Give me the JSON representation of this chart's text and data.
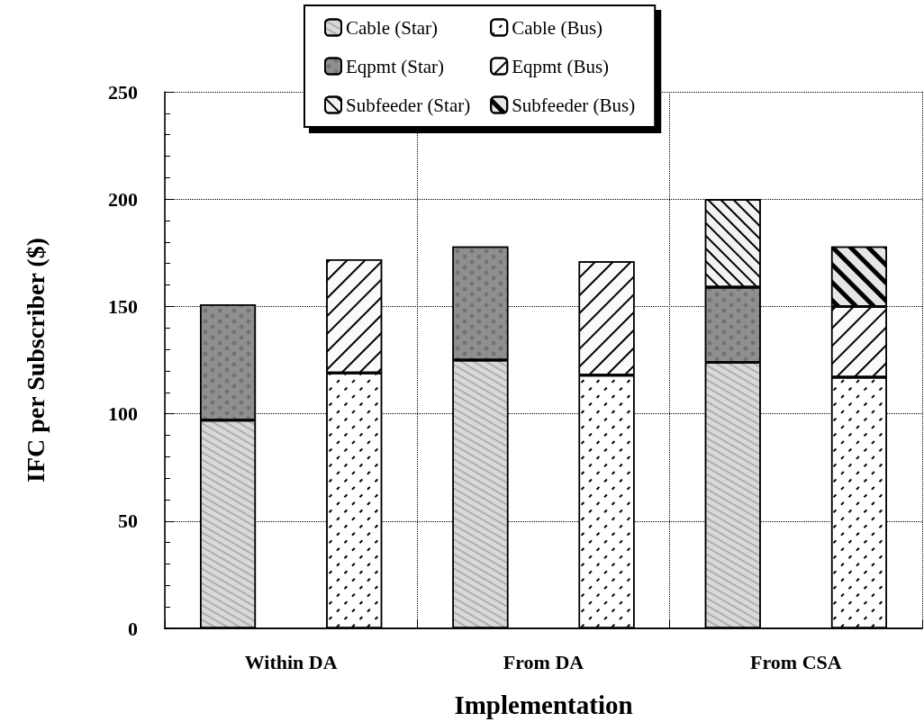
{
  "chart_data": {
    "type": "bar",
    "xlabel": "Implementation",
    "ylabel": "IFC per Subscriber ($)",
    "categories": [
      "Within DA",
      null,
      "From DA",
      null,
      "From CSA",
      null
    ],
    "stacked": true,
    "series": [
      {
        "name": "Cable (Star)",
        "color": "#d9d9d9",
        "values": [
          97,
          null,
          125,
          null,
          124,
          null
        ]
      },
      {
        "name": "Eqpmt (Star)",
        "color": "#8f8f8f",
        "values": [
          54,
          null,
          53,
          null,
          35,
          null
        ]
      },
      {
        "name": "Subfeeder (Star)",
        "color": "#f2f2f2",
        "values": [
          null,
          null,
          null,
          null,
          41,
          null
        ]
      },
      {
        "name": "Cable (Bus)",
        "color": "#ffffff",
        "values": [
          null,
          119,
          null,
          118,
          null,
          117
        ]
      },
      {
        "name": "Eqpmt (Bus)",
        "color": "#fafafa",
        "values": [
          null,
          53,
          null,
          53,
          null,
          33
        ]
      },
      {
        "name": "Subfeeder (Bus)",
        "color": "#e6e6e6",
        "values": [
          null,
          null,
          null,
          null,
          null,
          28
        ]
      }
    ],
    "ylim": [
      0,
      250
    ],
    "yticks": [
      0,
      50,
      100,
      150,
      200,
      250
    ],
    "grid": true,
    "legend": "top"
  }
}
